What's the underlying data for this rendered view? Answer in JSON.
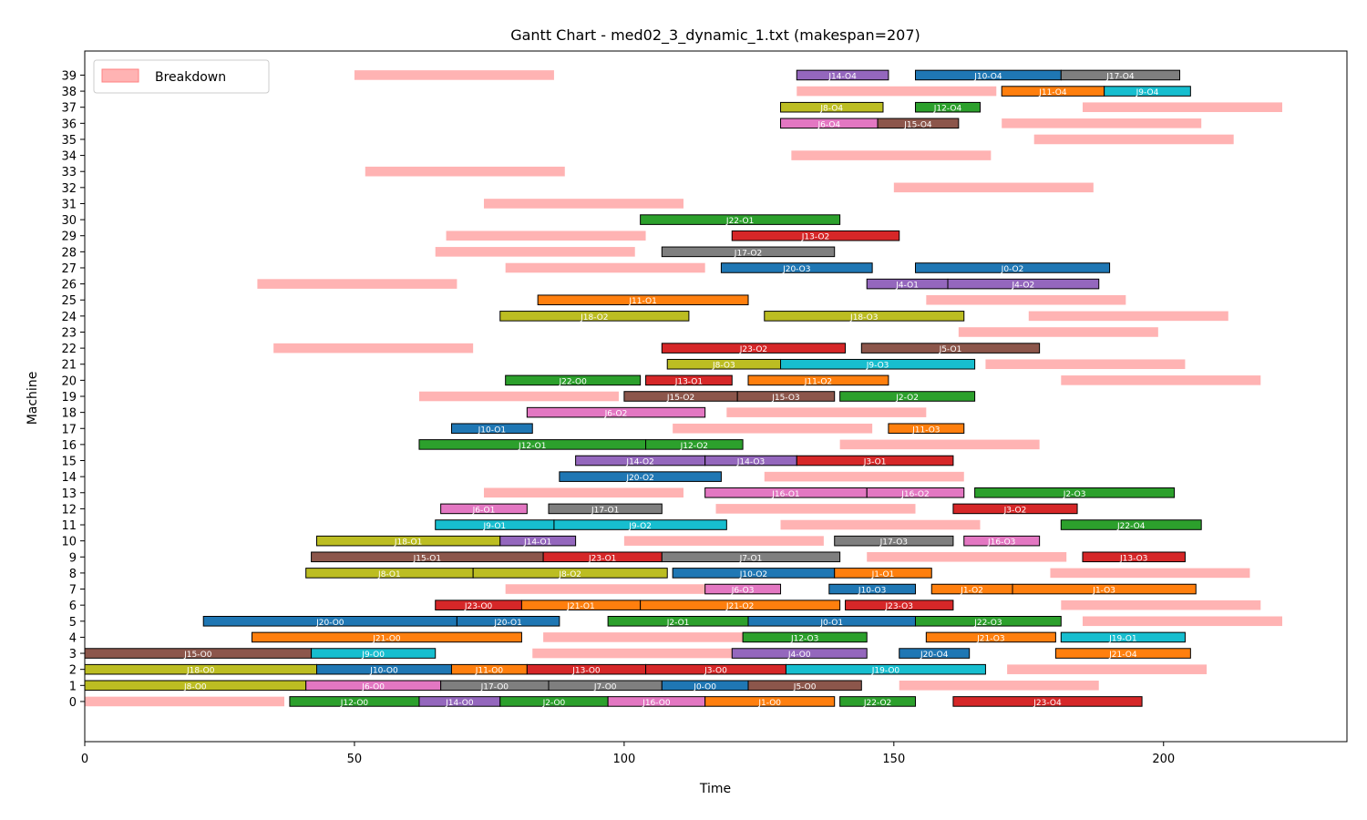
{
  "chart_data": {
    "type": "gantt",
    "title": "Gantt Chart - med02_3_dynamic_1.txt (makespan=207)",
    "xlabel": "Time",
    "ylabel": "Machine",
    "xlim": [
      0,
      234
    ],
    "ylim": [
      -2.5,
      40.5
    ],
    "xticks": [
      0,
      50,
      100,
      150,
      200
    ],
    "yticks": [
      0,
      1,
      2,
      3,
      4,
      5,
      6,
      7,
      8,
      9,
      10,
      11,
      12,
      13,
      14,
      15,
      16,
      17,
      18,
      19,
      20,
      21,
      22,
      23,
      24,
      25,
      26,
      27,
      28,
      29,
      30,
      31,
      32,
      33,
      34,
      35,
      36,
      37,
      38,
      39
    ],
    "grid": false,
    "legend": {
      "position": "top-left",
      "entries": [
        {
          "label": "Breakdown",
          "color": "#ffb3b3"
        }
      ]
    },
    "breakdown_color": "#ffb3b3",
    "job_colors": {
      "J0": "#1f77b4",
      "J1": "#ff7f0e",
      "J2": "#2ca02c",
      "J3": "#d62728",
      "J4": "#9467bd",
      "J5": "#8c564b",
      "J6": "#e377c2",
      "J7": "#7f7f7f",
      "J8": "#bcbd22",
      "J9": "#17becf",
      "J10": "#1f77b4",
      "J11": "#ff7f0e",
      "J12": "#2ca02c",
      "J13": "#d62728",
      "J14": "#9467bd",
      "J15": "#8c564b",
      "J16": "#e377c2",
      "J17": "#7f7f7f",
      "J18": "#bcbd22",
      "J19": "#17becf",
      "J20": "#1f77b4",
      "J21": "#ff7f0e",
      "J22": "#2ca02c",
      "J23": "#d62728"
    },
    "breakdowns": [
      {
        "m": 0,
        "start": 0,
        "end": 37
      },
      {
        "m": 1,
        "start": 151,
        "end": 188
      },
      {
        "m": 2,
        "start": 171,
        "end": 208
      },
      {
        "m": 3,
        "start": 83,
        "end": 120
      },
      {
        "m": 4,
        "start": 85,
        "end": 122
      },
      {
        "m": 5,
        "start": 185,
        "end": 222
      },
      {
        "m": 6,
        "start": 181,
        "end": 218
      },
      {
        "m": 7,
        "start": 78,
        "end": 115
      },
      {
        "m": 8,
        "start": 179,
        "end": 216
      },
      {
        "m": 9,
        "start": 145,
        "end": 182
      },
      {
        "m": 10,
        "start": 100,
        "end": 137
      },
      {
        "m": 11,
        "start": 129,
        "end": 166
      },
      {
        "m": 12,
        "start": 117,
        "end": 154
      },
      {
        "m": 13,
        "start": 74,
        "end": 111
      },
      {
        "m": 14,
        "start": 126,
        "end": 163
      },
      {
        "m": 16,
        "start": 140,
        "end": 177
      },
      {
        "m": 17,
        "start": 109,
        "end": 146
      },
      {
        "m": 18,
        "start": 119,
        "end": 156
      },
      {
        "m": 19,
        "start": 62,
        "end": 99
      },
      {
        "m": 20,
        "start": 181,
        "end": 218
      },
      {
        "m": 21,
        "start": 167,
        "end": 204
      },
      {
        "m": 22,
        "start": 35,
        "end": 72
      },
      {
        "m": 23,
        "start": 162,
        "end": 199
      },
      {
        "m": 24,
        "start": 175,
        "end": 212
      },
      {
        "m": 25,
        "start": 156,
        "end": 193
      },
      {
        "m": 26,
        "start": 32,
        "end": 69
      },
      {
        "m": 27,
        "start": 78,
        "end": 115
      },
      {
        "m": 28,
        "start": 65,
        "end": 102
      },
      {
        "m": 29,
        "start": 67,
        "end": 104
      },
      {
        "m": 31,
        "start": 74,
        "end": 111
      },
      {
        "m": 32,
        "start": 150,
        "end": 187
      },
      {
        "m": 33,
        "start": 52,
        "end": 89
      },
      {
        "m": 34,
        "start": 131,
        "end": 168
      },
      {
        "m": 35,
        "start": 176,
        "end": 213
      },
      {
        "m": 36,
        "start": 170,
        "end": 207
      },
      {
        "m": 37,
        "start": 185,
        "end": 222
      },
      {
        "m": 38,
        "start": 132,
        "end": 169
      },
      {
        "m": 39,
        "start": 50,
        "end": 87
      }
    ],
    "tasks": [
      {
        "m": 0,
        "label": "J12-O0",
        "start": 38,
        "end": 62
      },
      {
        "m": 0,
        "label": "J14-O0",
        "start": 62,
        "end": 77
      },
      {
        "m": 0,
        "label": "J2-O0",
        "start": 77,
        "end": 97
      },
      {
        "m": 0,
        "label": "J16-O0",
        "start": 97,
        "end": 115
      },
      {
        "m": 0,
        "label": "J1-O0",
        "start": 115,
        "end": 139
      },
      {
        "m": 0,
        "label": "J22-O2",
        "start": 140,
        "end": 154
      },
      {
        "m": 0,
        "label": "J23-O4",
        "start": 161,
        "end": 196
      },
      {
        "m": 1,
        "label": "J8-O0",
        "start": 0,
        "end": 41
      },
      {
        "m": 1,
        "label": "J6-O0",
        "start": 41,
        "end": 66
      },
      {
        "m": 1,
        "label": "J17-O0",
        "start": 66,
        "end": 86
      },
      {
        "m": 1,
        "label": "J7-O0",
        "start": 86,
        "end": 107
      },
      {
        "m": 1,
        "label": "J0-O0",
        "start": 107,
        "end": 123
      },
      {
        "m": 1,
        "label": "J5-O0",
        "start": 123,
        "end": 144
      },
      {
        "m": 2,
        "label": "J18-O0",
        "start": 0,
        "end": 43
      },
      {
        "m": 2,
        "label": "J10-O0",
        "start": 43,
        "end": 68
      },
      {
        "m": 2,
        "label": "J11-O0",
        "start": 68,
        "end": 82
      },
      {
        "m": 2,
        "label": "J13-O0",
        "start": 82,
        "end": 104
      },
      {
        "m": 2,
        "label": "J3-O0",
        "start": 104,
        "end": 130
      },
      {
        "m": 2,
        "label": "J19-O0",
        "start": 130,
        "end": 167
      },
      {
        "m": 3,
        "label": "J15-O0",
        "start": 0,
        "end": 42
      },
      {
        "m": 3,
        "label": "J9-O0",
        "start": 42,
        "end": 65
      },
      {
        "m": 3,
        "label": "J4-O0",
        "start": 120,
        "end": 145
      },
      {
        "m": 3,
        "label": "J20-O4",
        "start": 151,
        "end": 164
      },
      {
        "m": 3,
        "label": "J21-O4",
        "start": 180,
        "end": 205
      },
      {
        "m": 4,
        "label": "J21-O0",
        "start": 31,
        "end": 81
      },
      {
        "m": 4,
        "label": "J12-O3",
        "start": 122,
        "end": 145
      },
      {
        "m": 4,
        "label": "J21-O3",
        "start": 156,
        "end": 180
      },
      {
        "m": 4,
        "label": "J19-O1",
        "start": 181,
        "end": 204
      },
      {
        "m": 5,
        "label": "J20-O0",
        "start": 22,
        "end": 69
      },
      {
        "m": 5,
        "label": "J20-O1",
        "start": 69,
        "end": 88
      },
      {
        "m": 5,
        "label": "J2-O1",
        "start": 97,
        "end": 123
      },
      {
        "m": 5,
        "label": "J0-O1",
        "start": 123,
        "end": 154
      },
      {
        "m": 5,
        "label": "J22-O3",
        "start": 154,
        "end": 181
      },
      {
        "m": 6,
        "label": "J23-O0",
        "start": 65,
        "end": 81
      },
      {
        "m": 6,
        "label": "J21-O1",
        "start": 81,
        "end": 103
      },
      {
        "m": 6,
        "label": "J21-O2",
        "start": 103,
        "end": 140
      },
      {
        "m": 6,
        "label": "J23-O3",
        "start": 141,
        "end": 161
      },
      {
        "m": 7,
        "label": "J6-O3",
        "start": 115,
        "end": 129
      },
      {
        "m": 7,
        "label": "J10-O3",
        "start": 138,
        "end": 154
      },
      {
        "m": 7,
        "label": "J1-O2",
        "start": 157,
        "end": 172
      },
      {
        "m": 7,
        "label": "J1-O3",
        "start": 172,
        "end": 206
      },
      {
        "m": 8,
        "label": "J8-O1",
        "start": 41,
        "end": 72
      },
      {
        "m": 8,
        "label": "J8-O2",
        "start": 72,
        "end": 108
      },
      {
        "m": 8,
        "label": "J10-O2",
        "start": 109,
        "end": 139
      },
      {
        "m": 8,
        "label": "J1-O1",
        "start": 139,
        "end": 157
      },
      {
        "m": 9,
        "label": "J15-O1",
        "start": 42,
        "end": 85
      },
      {
        "m": 9,
        "label": "J23-O1",
        "start": 85,
        "end": 107
      },
      {
        "m": 9,
        "label": "J7-O1",
        "start": 107,
        "end": 140
      },
      {
        "m": 9,
        "label": "J13-O3",
        "start": 185,
        "end": 204
      },
      {
        "m": 10,
        "label": "J18-O1",
        "start": 43,
        "end": 77
      },
      {
        "m": 10,
        "label": "J14-O1",
        "start": 77,
        "end": 91
      },
      {
        "m": 10,
        "label": "J17-O3",
        "start": 139,
        "end": 161
      },
      {
        "m": 10,
        "label": "J16-O3",
        "start": 163,
        "end": 177
      },
      {
        "m": 11,
        "label": "J9-O1",
        "start": 65,
        "end": 87
      },
      {
        "m": 11,
        "label": "J9-O2",
        "start": 87,
        "end": 119
      },
      {
        "m": 11,
        "label": "J22-O4",
        "start": 181,
        "end": 207
      },
      {
        "m": 12,
        "label": "J6-O1",
        "start": 66,
        "end": 82
      },
      {
        "m": 12,
        "label": "J17-O1",
        "start": 86,
        "end": 107
      },
      {
        "m": 12,
        "label": "J3-O2",
        "start": 161,
        "end": 184
      },
      {
        "m": 13,
        "label": "J16-O1",
        "start": 115,
        "end": 145
      },
      {
        "m": 13,
        "label": "J16-O2",
        "start": 145,
        "end": 163
      },
      {
        "m": 13,
        "label": "J2-O3",
        "start": 165,
        "end": 202
      },
      {
        "m": 14,
        "label": "J20-O2",
        "start": 88,
        "end": 118
      },
      {
        "m": 15,
        "label": "J14-O2",
        "start": 91,
        "end": 115
      },
      {
        "m": 15,
        "label": "J14-O3",
        "start": 115,
        "end": 132
      },
      {
        "m": 15,
        "label": "J3-O1",
        "start": 132,
        "end": 161
      },
      {
        "m": 16,
        "label": "J12-O1",
        "start": 62,
        "end": 104
      },
      {
        "m": 16,
        "label": "J12-O2",
        "start": 104,
        "end": 122
      },
      {
        "m": 17,
        "label": "J10-O1",
        "start": 68,
        "end": 83
      },
      {
        "m": 17,
        "label": "J11-O3",
        "start": 149,
        "end": 163
      },
      {
        "m": 18,
        "label": "J6-O2",
        "start": 82,
        "end": 115
      },
      {
        "m": 19,
        "label": "J15-O2",
        "start": 100,
        "end": 121
      },
      {
        "m": 19,
        "label": "J15-O3",
        "start": 121,
        "end": 139
      },
      {
        "m": 19,
        "label": "J2-O2",
        "start": 140,
        "end": 165
      },
      {
        "m": 20,
        "label": "J22-O0",
        "start": 78,
        "end": 103
      },
      {
        "m": 20,
        "label": "J13-O1",
        "start": 104,
        "end": 120
      },
      {
        "m": 20,
        "label": "J11-O2",
        "start": 123,
        "end": 149
      },
      {
        "m": 21,
        "label": "J8-O3",
        "start": 108,
        "end": 129
      },
      {
        "m": 21,
        "label": "J9-O3",
        "start": 129,
        "end": 165
      },
      {
        "m": 22,
        "label": "J23-O2",
        "start": 107,
        "end": 141
      },
      {
        "m": 22,
        "label": "J5-O1",
        "start": 144,
        "end": 177
      },
      {
        "m": 24,
        "label": "J18-O2",
        "start": 77,
        "end": 112
      },
      {
        "m": 24,
        "label": "J18-O3",
        "start": 126,
        "end": 163
      },
      {
        "m": 25,
        "label": "J11-O1",
        "start": 84,
        "end": 123
      },
      {
        "m": 26,
        "label": "J4-O1",
        "start": 145,
        "end": 160
      },
      {
        "m": 26,
        "label": "J4-O2",
        "start": 160,
        "end": 188
      },
      {
        "m": 27,
        "label": "J20-O3",
        "start": 118,
        "end": 146
      },
      {
        "m": 27,
        "label": "J0-O2",
        "start": 154,
        "end": 190
      },
      {
        "m": 28,
        "label": "J17-O2",
        "start": 107,
        "end": 139
      },
      {
        "m": 29,
        "label": "J13-O2",
        "start": 120,
        "end": 151
      },
      {
        "m": 30,
        "label": "J22-O1",
        "start": 103,
        "end": 140
      },
      {
        "m": 36,
        "label": "J6-O4",
        "start": 129,
        "end": 147
      },
      {
        "m": 36,
        "label": "J15-O4",
        "start": 147,
        "end": 162
      },
      {
        "m": 37,
        "label": "J8-O4",
        "start": 129,
        "end": 148
      },
      {
        "m": 37,
        "label": "J12-O4",
        "start": 154,
        "end": 166
      },
      {
        "m": 38,
        "label": "J11-O4",
        "start": 170,
        "end": 189
      },
      {
        "m": 38,
        "label": "J9-O4",
        "start": 189,
        "end": 205
      },
      {
        "m": 39,
        "label": "J14-O4",
        "start": 132,
        "end": 149
      },
      {
        "m": 39,
        "label": "J10-O4",
        "start": 154,
        "end": 181
      },
      {
        "m": 39,
        "label": "J17-O4",
        "start": 181,
        "end": 203
      }
    ]
  }
}
